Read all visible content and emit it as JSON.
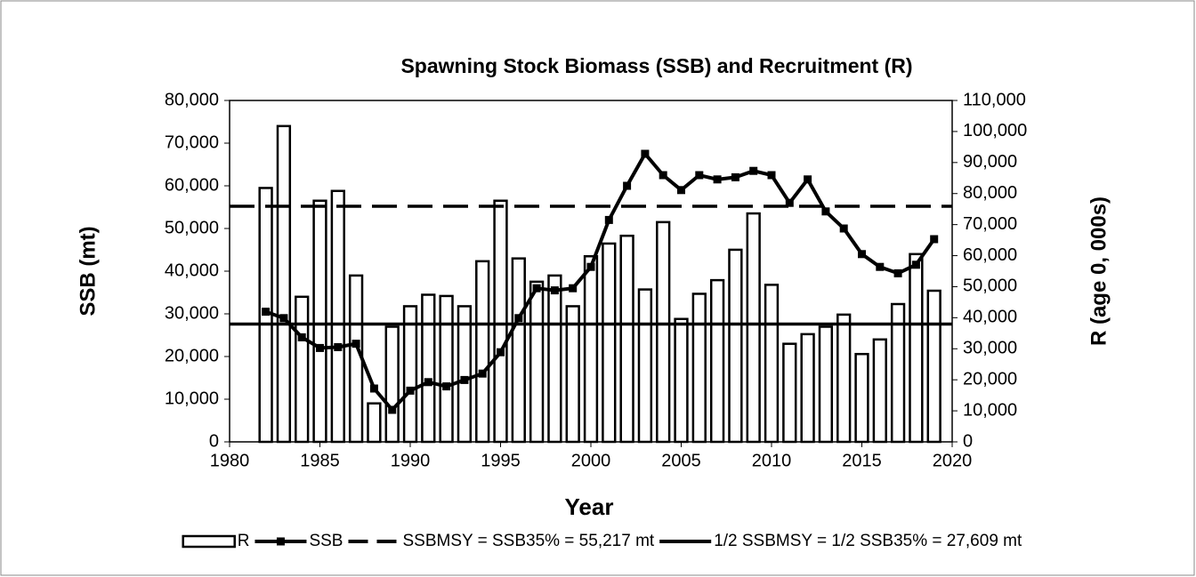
{
  "chart_data": {
    "type": "bar_line",
    "title": "Spawning Stock Biomass (SSB) and Recruitment (R)",
    "xlabel": "Year",
    "ylabel": "SSB (mt)",
    "y2label": "R (age 0, 000s)",
    "x": [
      1982,
      1983,
      1984,
      1985,
      1986,
      1987,
      1988,
      1989,
      1990,
      1991,
      1992,
      1993,
      1994,
      1995,
      1996,
      1997,
      1998,
      1999,
      2000,
      2001,
      2002,
      2003,
      2004,
      2005,
      2006,
      2007,
      2008,
      2009,
      2010,
      2011,
      2012,
      2013,
      2014,
      2015,
      2016,
      2017,
      2018,
      2019
    ],
    "series": [
      {
        "name": "R",
        "type": "bar",
        "axis": "y2",
        "color": "#ffffff",
        "values": [
          81800,
          101750,
          46750,
          77700,
          80850,
          53600,
          12400,
          37100,
          43700,
          47400,
          47000,
          43700,
          58200,
          77700,
          59100,
          51600,
          53600,
          43700,
          59800,
          63900,
          66400,
          49100,
          70800,
          39600,
          47700,
          52100,
          61900,
          73600,
          50600,
          31600,
          34700,
          37100,
          41000,
          28300,
          33000,
          44400,
          60500,
          48700
        ]
      },
      {
        "name": "SSB",
        "type": "line",
        "color": "#000000",
        "values": [
          30500,
          29000,
          24500,
          22000,
          22200,
          23000,
          12500,
          7500,
          12000,
          14000,
          13000,
          14500,
          16000,
          21000,
          29000,
          36000,
          35500,
          36000,
          41000,
          52000,
          60000,
          67500,
          62500,
          59000,
          62500,
          61500,
          62000,
          63500,
          62500,
          56000,
          61500,
          54000,
          50000,
          44000,
          41000,
          39500,
          41500,
          47500
        ]
      }
    ],
    "reference_lines": [
      {
        "name": "SSBMSY = SSB35% = 55,217 mt",
        "value": 55217,
        "style": "dashed",
        "color": "#000000"
      },
      {
        "name": "1/2 SSBMSY = 1/2 SSB35%  = 27,609 mt",
        "value": 27609,
        "style": "solid",
        "color": "#000000"
      }
    ],
    "xlim": [
      1980,
      2020
    ],
    "xticks": [
      1980,
      1985,
      1990,
      1995,
      2000,
      2005,
      2010,
      2015,
      2020
    ],
    "ylim": [
      0,
      80000
    ],
    "yticks": [
      0,
      {
        "value": 10000,
        "label": "10,000"
      },
      {
        "value": 20000,
        "label": "20,000"
      },
      {
        "value": 30000,
        "label": "30,000"
      },
      {
        "value": 40000,
        "label": "40,000"
      },
      {
        "value": 50000,
        "label": "50,000"
      },
      {
        "value": 60000,
        "label": "60,000"
      },
      {
        "value": 70000,
        "label": "70,000"
      },
      {
        "value": 80000,
        "label": "80,000"
      }
    ],
    "y2lim": [
      0,
      110000
    ],
    "y2ticks": [
      0,
      {
        "value": 10000,
        "label": "10,000"
      },
      {
        "value": 20000,
        "label": "20,000"
      },
      {
        "value": 30000,
        "label": "30,000"
      },
      {
        "value": 40000,
        "label": "40,000"
      },
      {
        "value": 50000,
        "label": "50,000"
      },
      {
        "value": 60000,
        "label": "60,000"
      },
      {
        "value": 70000,
        "label": "70,000"
      },
      {
        "value": 80000,
        "label": "80,000"
      },
      {
        "value": 90000,
        "label": "90,000"
      },
      {
        "value": 100000,
        "label": "100,000"
      },
      {
        "value": 110000,
        "label": "110,000"
      }
    ],
    "legend": "bottom"
  }
}
